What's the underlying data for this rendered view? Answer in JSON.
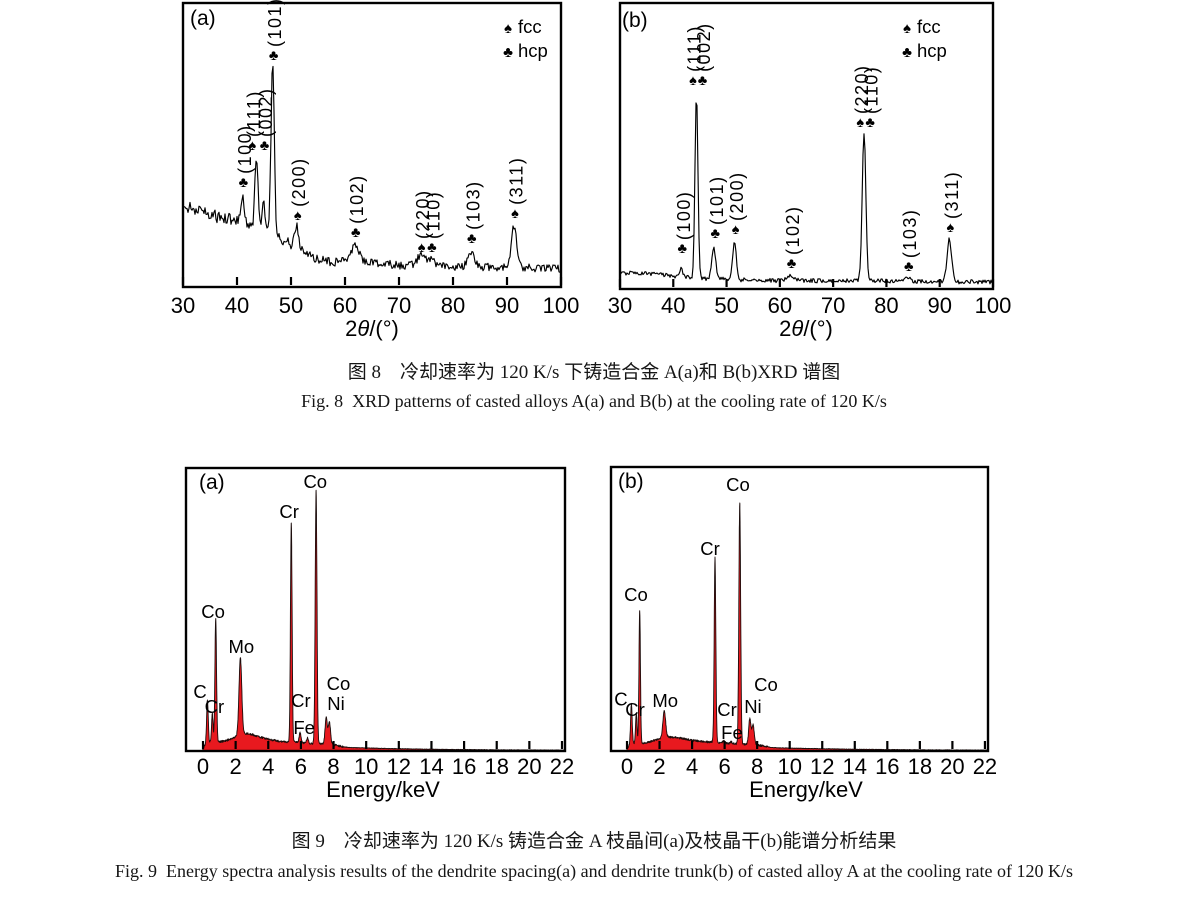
{
  "figure8": {
    "caption_zh": "图 8　冷却速率为 120 K/s 下铸造合金 A(a)和 B(b)XRD 谱图",
    "caption_en": "Fig. 8  XRD patterns of casted alloys A(a) and B(b) at the cooling rate of 120 K/s"
  },
  "figure9": {
    "caption_zh": "图 9　冷却速率为 120 K/s 铸造合金 A 枝晶间(a)及枝晶干(b)能谱分析结果",
    "caption_en": "Fig. 9  Energy spectra analysis results of the dendrite spacing(a) and dendrite trunk(b) of casted alloy A at the cooling rate of 120 K/s"
  },
  "chart_data": [
    {
      "panel": "xrd-a",
      "type": "line",
      "panel_label": "(a)",
      "xlabel": "2θ/(°)",
      "x_range": [
        30,
        100
      ],
      "x_ticks": [
        30,
        40,
        50,
        60,
        70,
        80,
        90,
        100
      ],
      "ylabel": "",
      "y_units": "intensity (a.u., 0-100 relative scale)",
      "line_color": "#000000",
      "legend": [
        {
          "symbol": "♠",
          "label": "fcc"
        },
        {
          "symbol": "♣",
          "label": "hcp"
        }
      ],
      "noise": {
        "base": 3.0,
        "scale": 0.14
      },
      "background_profile": [
        [
          30,
          28.5
        ],
        [
          33,
          26.8
        ],
        [
          36,
          25.0
        ],
        [
          38.5,
          23.8
        ],
        [
          40.5,
          22.8
        ],
        [
          42.5,
          21.7
        ],
        [
          44.5,
          20.3
        ],
        [
          46.5,
          18.7
        ],
        [
          48,
          17.0
        ],
        [
          49.5,
          15.8
        ],
        [
          51,
          13.9
        ],
        [
          53,
          11.6
        ],
        [
          55,
          9.5
        ],
        [
          58,
          8.8
        ],
        [
          62,
          9.3
        ],
        [
          66,
          8.3
        ],
        [
          70,
          7.7
        ],
        [
          74,
          7.7
        ],
        [
          78,
          7.2
        ],
        [
          82,
          7.0
        ],
        [
          86,
          7.0
        ],
        [
          90,
          7.0
        ],
        [
          94,
          6.7
        ],
        [
          100,
          6.3
        ]
      ],
      "peaks": [
        {
          "two_theta": 41.0,
          "intensity": 33.1,
          "hwhm": 0.3
        },
        {
          "two_theta": 43.6,
          "intensity": 45.8,
          "hwhm": 0.33
        },
        {
          "two_theta": 44.9,
          "intensity": 30.6,
          "hwhm": 0.35
        },
        {
          "two_theta": 46.6,
          "intensity": 78.9,
          "hwhm": 0.35
        },
        {
          "two_theta": 51.05,
          "intensity": 22.2,
          "hwhm": 0.4
        },
        {
          "two_theta": 61.8,
          "intensity": 14.8,
          "hwhm": 0.8
        },
        {
          "two_theta": 74.0,
          "intensity": 10.9,
          "hwhm": 0.8
        },
        {
          "two_theta": 75.9,
          "intensity": 10.3,
          "hwhm": 0.8
        },
        {
          "two_theta": 83.3,
          "intensity": 12.7,
          "hwhm": 0.7
        },
        {
          "two_theta": 91.3,
          "intensity": 21.5,
          "hwhm": 0.55
        }
      ],
      "annotations": [
        {
          "x": 41.0,
          "hkl": "(100)",
          "phase": "hcp",
          "sym_y": 37.0
        },
        {
          "x": 42.65,
          "hkl": "(111)",
          "phase": "fcc",
          "sym_y": 50.0
        },
        {
          "x": 44.9,
          "hkl": "(002)",
          "phase": "hcp",
          "sym_y": 50.0
        },
        {
          "x": 46.6,
          "hkl": "(101)",
          "phase": "hcp",
          "sym_y": 81.7
        },
        {
          "x": 51.05,
          "hkl": "(200)",
          "phase": "fcc",
          "sym_y": 25.4
        },
        {
          "x": 61.8,
          "hkl": "(102)",
          "phase": "hcp",
          "sym_y": 19.4
        },
        {
          "x": 74.0,
          "hkl": "(220)",
          "phase": "fcc",
          "sym_y": 14.1
        },
        {
          "x": 75.9,
          "hkl": "(110)",
          "phase": "hcp",
          "sym_y": 14.1
        },
        {
          "x": 83.3,
          "hkl": "(103)",
          "phase": "hcp",
          "sym_y": 17.3
        },
        {
          "x": 91.3,
          "hkl": "(311)",
          "phase": "fcc",
          "sym_y": 26.1
        }
      ]
    },
    {
      "panel": "xrd-b",
      "type": "line",
      "panel_label": "(b)",
      "xlabel": "2θ/(°)",
      "x_range": [
        30,
        100
      ],
      "x_ticks": [
        30,
        40,
        50,
        60,
        70,
        80,
        90,
        100
      ],
      "ylabel": "",
      "y_units": "intensity (a.u., 0-100 relative scale)",
      "line_color": "#000000",
      "legend": [
        {
          "symbol": "♠",
          "label": "fcc"
        },
        {
          "symbol": "♣",
          "label": "hcp"
        }
      ],
      "noise": {
        "base": 2.1,
        "scale": 0.02
      },
      "background_profile": [
        [
          30,
          5.6
        ],
        [
          36,
          5.2
        ],
        [
          40,
          4.5
        ],
        [
          44,
          3.8
        ],
        [
          48,
          3.5
        ],
        [
          52,
          3.3
        ],
        [
          58,
          3.0
        ],
        [
          65,
          2.9
        ],
        [
          75,
          2.9
        ],
        [
          85,
          2.7
        ],
        [
          95,
          2.5
        ],
        [
          100,
          2.5
        ]
      ],
      "peaks": [
        {
          "two_theta": 41.5,
          "intensity": 7.7,
          "hwhm": 0.3
        },
        {
          "two_theta": 44.35,
          "intensity": 68.5,
          "hwhm": 0.32
        },
        {
          "two_theta": 47.6,
          "intensity": 14.3,
          "hwhm": 0.45
        },
        {
          "two_theta": 51.5,
          "intensity": 16.4,
          "hwhm": 0.4
        },
        {
          "two_theta": 62.0,
          "intensity": 4.4,
          "hwhm": 0.7
        },
        {
          "two_theta": 75.8,
          "intensity": 54.5,
          "hwhm": 0.4
        },
        {
          "two_theta": 84.0,
          "intensity": 3.9,
          "hwhm": 0.6
        },
        {
          "two_theta": 91.8,
          "intensity": 17.5,
          "hwhm": 0.5
        }
      ],
      "annotations": [
        {
          "x": 41.5,
          "hkl": "(100)",
          "phase": "hcp",
          "sym_y": 14.3
        },
        {
          "x": 43.5,
          "hkl": "(111)",
          "phase": "fcc",
          "sym_y": 73.1
        },
        {
          "x": 45.3,
          "hkl": "(002)",
          "phase": "hcp",
          "sym_y": 73.1
        },
        {
          "x": 47.7,
          "hkl": "(101)",
          "phase": "hcp",
          "sym_y": 19.6
        },
        {
          "x": 51.5,
          "hkl": "(200)",
          "phase": "fcc",
          "sym_y": 21.0
        },
        {
          "x": 62.0,
          "hkl": "(102)",
          "phase": "hcp",
          "sym_y": 9.1
        },
        {
          "x": 74.9,
          "hkl": "(220)",
          "phase": "fcc",
          "sym_y": 58.4
        },
        {
          "x": 76.75,
          "hkl": "(110)",
          "phase": "hcp",
          "sym_y": 58.4
        },
        {
          "x": 84.0,
          "hkl": "(103)",
          "phase": "hcp",
          "sym_y": 8.0
        },
        {
          "x": 91.8,
          "hkl": "(311)",
          "phase": "fcc",
          "sym_y": 21.7
        }
      ]
    },
    {
      "panel": "eds-a",
      "type": "area",
      "panel_label": "(a)",
      "xlabel": "Energy/keV",
      "x_range": [
        0,
        22
      ],
      "x_ticks": [
        0,
        2,
        4,
        6,
        8,
        10,
        12,
        14,
        16,
        18,
        20,
        22
      ],
      "ylabel": "",
      "y_units": "counts (a.u., 0-100 relative scale)",
      "fill_color": "#e8191f",
      "continuum": [
        [
          -1.1,
          0
        ],
        [
          -0.05,
          0
        ],
        [
          0.12,
          2.1
        ],
        [
          0.5,
          3.5
        ],
        [
          0.9,
          3.2
        ],
        [
          1.3,
          3.5
        ],
        [
          1.7,
          4.2
        ],
        [
          2.1,
          5.3
        ],
        [
          2.5,
          6.2
        ],
        [
          2.9,
          6.0
        ],
        [
          3.3,
          5.3
        ],
        [
          3.7,
          4.6
        ],
        [
          4.2,
          3.9
        ],
        [
          4.7,
          3.5
        ],
        [
          5.2,
          3.2
        ],
        [
          5.7,
          3.2
        ],
        [
          6.2,
          2.8
        ],
        [
          6.7,
          2.6
        ],
        [
          7.2,
          2.5
        ],
        [
          7.7,
          2.3
        ],
        [
          8.1,
          2.1
        ],
        [
          8.6,
          1.5
        ],
        [
          9,
          1.2
        ],
        [
          10,
          1.1
        ],
        [
          11,
          0.9
        ],
        [
          12,
          0.8
        ],
        [
          13,
          0.7
        ],
        [
          14,
          0.6
        ],
        [
          16,
          0.5
        ],
        [
          18,
          0.4
        ],
        [
          20,
          0.35
        ],
        [
          22,
          0.3
        ]
      ],
      "peaks": [
        {
          "energy": 0.27,
          "element": "C",
          "intensity": 18.0,
          "sigma": 0.05
        },
        {
          "energy": 0.57,
          "element": "Cr",
          "intensity": 13.1,
          "sigma": 0.045
        },
        {
          "energy": 0.78,
          "element": "Co",
          "intensity": 46.8,
          "sigma": 0.05
        },
        {
          "energy": 2.29,
          "element": "Mo",
          "intensity": 32.9,
          "sigma": 0.085
        },
        {
          "energy": 5.41,
          "element": "Cr",
          "intensity": 80.9,
          "sigma": 0.05
        },
        {
          "energy": 5.95,
          "element": "Cr",
          "intensity": 6.4,
          "sigma": 0.06
        },
        {
          "energy": 6.4,
          "element": "Fe",
          "intensity": 4.6,
          "sigma": 0.06
        },
        {
          "energy": 6.93,
          "element": "Co",
          "intensity": 91.9,
          "sigma": 0.055
        },
        {
          "energy": 7.55,
          "element": "Ni",
          "intensity": 11.7,
          "sigma": 0.07
        },
        {
          "energy": 7.75,
          "element": "Co",
          "intensity": 9.9,
          "sigma": 0.07
        }
      ],
      "labels": [
        {
          "text": "C",
          "x": -0.18,
          "y": 18.7
        },
        {
          "text": "Cr",
          "x": 0.7,
          "y": 13.4
        },
        {
          "text": "Co",
          "x": 0.62,
          "y": 47.0
        },
        {
          "text": "Mo",
          "x": 2.35,
          "y": 34.6
        },
        {
          "text": "Cr",
          "x": 5.28,
          "y": 82.3
        },
        {
          "text": "Cr",
          "x": 6.0,
          "y": 15.5
        },
        {
          "text": "Fe",
          "x": 6.2,
          "y": 6.0
        },
        {
          "text": "Co",
          "x": 6.88,
          "y": 92.9
        },
        {
          "text": "Co",
          "x": 8.3,
          "y": 21.6
        },
        {
          "text": "Ni",
          "x": 8.15,
          "y": 14.5
        }
      ]
    },
    {
      "panel": "eds-b",
      "type": "area",
      "panel_label": "(b)",
      "xlabel": "Energy/keV",
      "x_range": [
        0,
        22
      ],
      "x_ticks": [
        0,
        2,
        4,
        6,
        8,
        10,
        12,
        14,
        16,
        18,
        20,
        22
      ],
      "ylabel": "",
      "y_units": "counts (a.u., 0-100 relative scale)",
      "fill_color": "#e8191f",
      "continuum": [
        [
          -1.1,
          0
        ],
        [
          -0.05,
          0
        ],
        [
          0.12,
          1.9
        ],
        [
          0.5,
          2.8
        ],
        [
          0.9,
          2.6
        ],
        [
          1.4,
          3.2
        ],
        [
          1.9,
          4.2
        ],
        [
          2.4,
          4.9
        ],
        [
          2.9,
          4.9
        ],
        [
          3.4,
          4.4
        ],
        [
          3.9,
          3.9
        ],
        [
          4.4,
          3.5
        ],
        [
          4.9,
          3.2
        ],
        [
          5.4,
          3.2
        ],
        [
          5.9,
          2.8
        ],
        [
          6.4,
          2.6
        ],
        [
          6.9,
          2.5
        ],
        [
          7.4,
          2.3
        ],
        [
          7.9,
          2.1
        ],
        [
          8.4,
          1.8
        ],
        [
          8.9,
          1.2
        ],
        [
          10,
          1.0
        ],
        [
          12,
          0.8
        ],
        [
          14,
          0.6
        ],
        [
          16,
          0.5
        ],
        [
          18,
          0.4
        ],
        [
          20,
          0.35
        ],
        [
          22,
          0.3
        ]
      ],
      "peaks": [
        {
          "energy": 0.27,
          "element": "C",
          "intensity": 16.5,
          "sigma": 0.05
        },
        {
          "energy": 0.57,
          "element": "Cr",
          "intensity": 13.0,
          "sigma": 0.045
        },
        {
          "energy": 0.78,
          "element": "Co",
          "intensity": 49.6,
          "sigma": 0.045
        },
        {
          "energy": 2.29,
          "element": "Mo",
          "intensity": 14.0,
          "sigma": 0.085
        },
        {
          "energy": 5.41,
          "element": "Cr",
          "intensity": 68.0,
          "sigma": 0.05
        },
        {
          "energy": 5.95,
          "element": "Cr",
          "intensity": 3.5,
          "sigma": 0.06
        },
        {
          "energy": 6.4,
          "element": "Fe",
          "intensity": 3.2,
          "sigma": 0.06
        },
        {
          "energy": 6.93,
          "element": "Co",
          "intensity": 87.5,
          "sigma": 0.055
        },
        {
          "energy": 7.55,
          "element": "Ni",
          "intensity": 11.3,
          "sigma": 0.07
        },
        {
          "energy": 7.75,
          "element": "Co",
          "intensity": 9.2,
          "sigma": 0.07
        }
      ],
      "labels": [
        {
          "text": "C",
          "x": -0.37,
          "y": 16.0
        },
        {
          "text": "Cr",
          "x": 0.49,
          "y": 12.3
        },
        {
          "text": "Co",
          "x": 0.55,
          "y": 52.8
        },
        {
          "text": "Mo",
          "x": 2.35,
          "y": 15.5
        },
        {
          "text": "Cr",
          "x": 5.1,
          "y": 69.0
        },
        {
          "text": "Cr",
          "x": 6.15,
          "y": 12.3
        },
        {
          "text": "Fe",
          "x": 6.45,
          "y": 4.2
        },
        {
          "text": "Co",
          "x": 6.82,
          "y": 91.5
        },
        {
          "text": "Co",
          "x": 8.54,
          "y": 21.1
        },
        {
          "text": "Ni",
          "x": 7.74,
          "y": 13.4
        }
      ]
    }
  ]
}
